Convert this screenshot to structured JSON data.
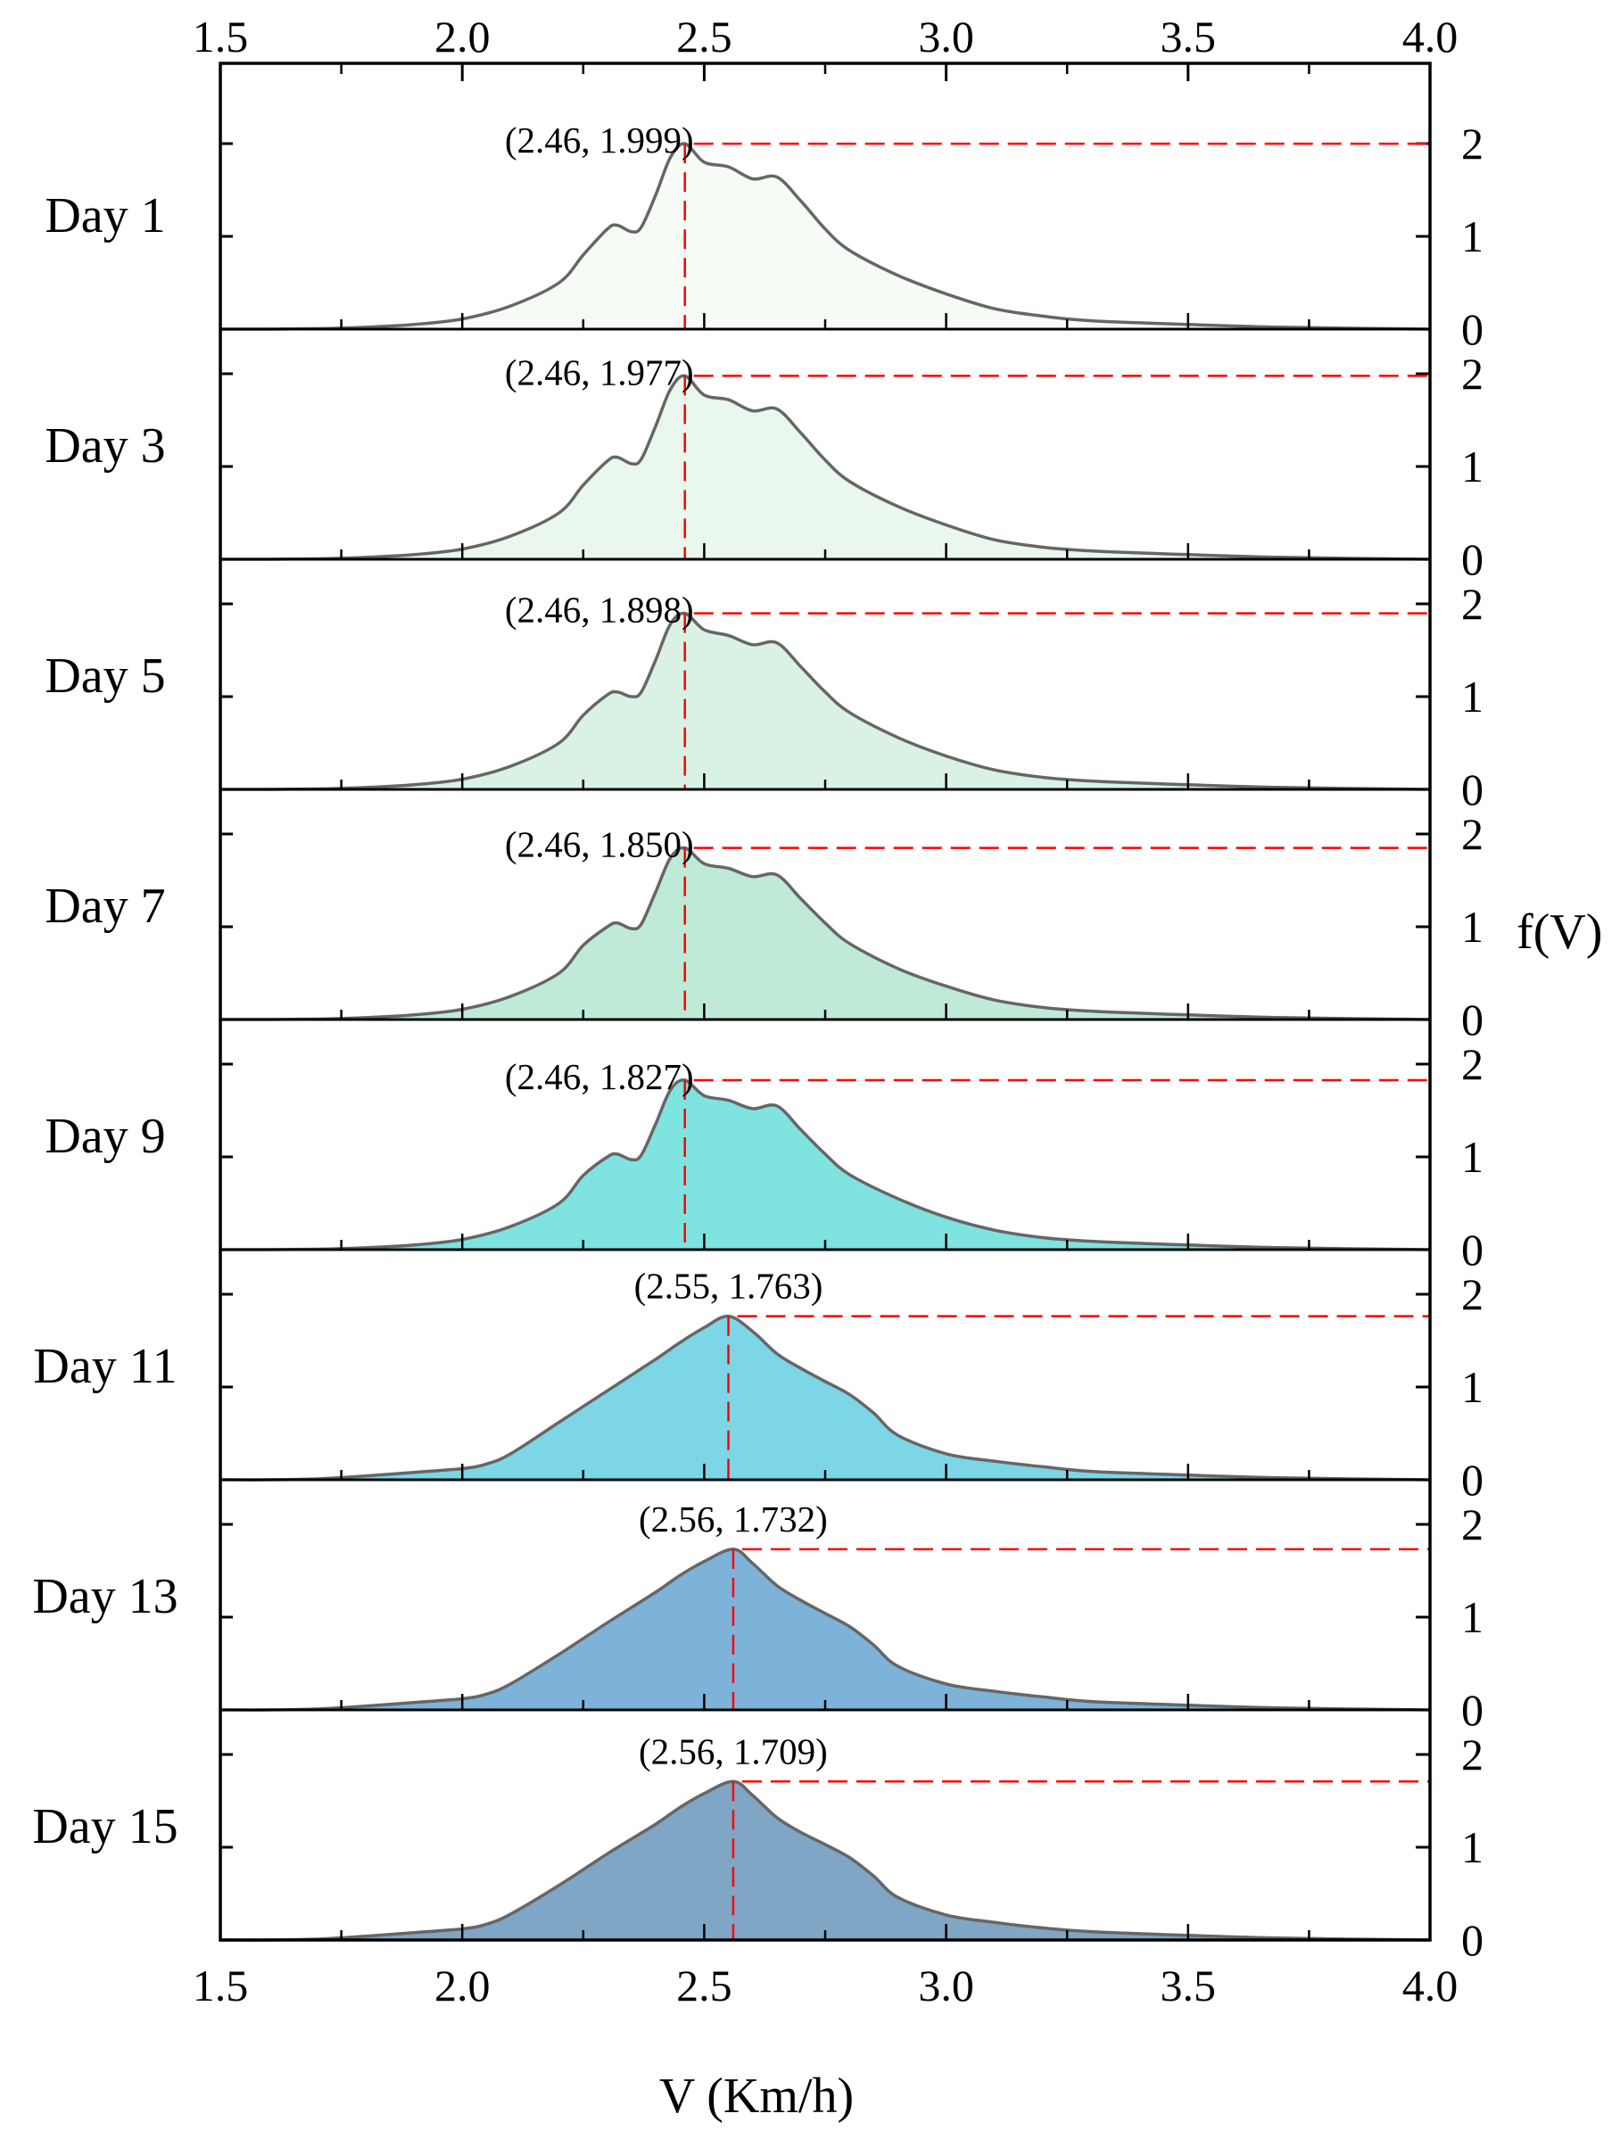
{
  "chart_data": {
    "type": "area",
    "xlabel": "V (Km/h)",
    "ylabel": "f(V)",
    "xlim": [
      1.5,
      4.0
    ],
    "xticks": [
      "1.5",
      "2.0",
      "2.5",
      "3.0",
      "3.5",
      "4.0"
    ],
    "ylim": [
      0,
      2.0
    ],
    "yticks": [
      "0",
      "1",
      "2"
    ],
    "panels": [
      {
        "label": "Day 1",
        "peak_label": "(2.46, 1.999)",
        "peak": [
          2.46,
          1.999
        ],
        "color": "#f6fbf6",
        "x": [
          1.5,
          1.6,
          1.7,
          1.8,
          1.9,
          2.0,
          2.1,
          2.2,
          2.25,
          2.3,
          2.32,
          2.35,
          2.37,
          2.4,
          2.43,
          2.46,
          2.5,
          2.55,
          2.6,
          2.65,
          2.7,
          2.75,
          2.8,
          2.9,
          3.0,
          3.1,
          3.2,
          3.3,
          3.5,
          3.7,
          4.0
        ],
        "y": [
          0,
          0,
          0.005,
          0.02,
          0.05,
          0.11,
          0.25,
          0.5,
          0.8,
          1.08,
          1.12,
          1.05,
          1.1,
          1.45,
          1.85,
          1.999,
          1.8,
          1.75,
          1.62,
          1.64,
          1.38,
          1.08,
          0.85,
          0.58,
          0.38,
          0.22,
          0.14,
          0.09,
          0.05,
          0.02,
          0
        ]
      },
      {
        "label": "Day 3",
        "peak_label": "(2.46, 1.977)",
        "peak": [
          2.46,
          1.977
        ],
        "color": "#eaf7ec",
        "x": [
          1.5,
          1.6,
          1.7,
          1.8,
          1.9,
          2.0,
          2.1,
          2.2,
          2.25,
          2.3,
          2.32,
          2.35,
          2.37,
          2.4,
          2.43,
          2.46,
          2.5,
          2.55,
          2.6,
          2.65,
          2.7,
          2.75,
          2.8,
          2.9,
          3.0,
          3.1,
          3.2,
          3.3,
          3.5,
          3.7,
          4.0
        ],
        "y": [
          0,
          0,
          0.005,
          0.02,
          0.05,
          0.11,
          0.25,
          0.5,
          0.8,
          1.06,
          1.1,
          1.03,
          1.08,
          1.44,
          1.83,
          1.977,
          1.77,
          1.72,
          1.6,
          1.62,
          1.36,
          1.07,
          0.84,
          0.57,
          0.37,
          0.21,
          0.13,
          0.09,
          0.05,
          0.02,
          0
        ]
      },
      {
        "label": "Day 5",
        "peak_label": "(2.46, 1.898)",
        "peak": [
          2.46,
          1.898
        ],
        "color": "#d9f2e3",
        "x": [
          1.5,
          1.6,
          1.7,
          1.8,
          1.9,
          2.0,
          2.1,
          2.2,
          2.25,
          2.3,
          2.32,
          2.35,
          2.37,
          2.4,
          2.43,
          2.46,
          2.5,
          2.55,
          2.6,
          2.65,
          2.7,
          2.75,
          2.8,
          2.9,
          3.0,
          3.1,
          3.2,
          3.3,
          3.5,
          3.7,
          4.0
        ],
        "y": [
          0,
          0,
          0.005,
          0.02,
          0.05,
          0.11,
          0.25,
          0.5,
          0.8,
          1.02,
          1.05,
          1.0,
          1.05,
          1.4,
          1.78,
          1.898,
          1.72,
          1.66,
          1.56,
          1.58,
          1.32,
          1.05,
          0.83,
          0.56,
          0.36,
          0.21,
          0.13,
          0.09,
          0.05,
          0.02,
          0
        ]
      },
      {
        "label": "Day 7",
        "peak_label": "(2.46, 1.850)",
        "peak": [
          2.46,
          1.85
        ],
        "color": "#bfead7",
        "x": [
          1.5,
          1.6,
          1.7,
          1.8,
          1.9,
          2.0,
          2.1,
          2.2,
          2.25,
          2.3,
          2.32,
          2.35,
          2.37,
          2.4,
          2.43,
          2.46,
          2.5,
          2.55,
          2.6,
          2.65,
          2.7,
          2.75,
          2.8,
          2.9,
          3.0,
          3.1,
          3.2,
          3.3,
          3.5,
          3.7,
          4.0
        ],
        "y": [
          0,
          0,
          0.005,
          0.02,
          0.05,
          0.11,
          0.25,
          0.5,
          0.8,
          1.0,
          1.04,
          0.98,
          1.03,
          1.38,
          1.74,
          1.85,
          1.68,
          1.63,
          1.54,
          1.56,
          1.3,
          1.04,
          0.82,
          0.55,
          0.36,
          0.21,
          0.13,
          0.09,
          0.05,
          0.02,
          0
        ]
      },
      {
        "label": "Day 9",
        "peak_label": "(2.46, 1.827)",
        "peak": [
          2.46,
          1.827
        ],
        "color": "#7fe3df",
        "x": [
          1.5,
          1.6,
          1.7,
          1.8,
          1.9,
          2.0,
          2.1,
          2.2,
          2.25,
          2.3,
          2.32,
          2.35,
          2.37,
          2.4,
          2.43,
          2.46,
          2.5,
          2.55,
          2.6,
          2.65,
          2.7,
          2.75,
          2.8,
          2.9,
          3.0,
          3.1,
          3.2,
          3.3,
          3.5,
          3.7,
          4.0
        ],
        "y": [
          0,
          0,
          0.005,
          0.02,
          0.05,
          0.11,
          0.25,
          0.5,
          0.8,
          1.0,
          1.03,
          0.97,
          1.02,
          1.36,
          1.72,
          1.827,
          1.66,
          1.61,
          1.52,
          1.55,
          1.29,
          1.03,
          0.81,
          0.55,
          0.35,
          0.21,
          0.13,
          0.09,
          0.05,
          0.02,
          0
        ]
      },
      {
        "label": "Day 11",
        "peak_label": "(2.55, 1.763)",
        "peak": [
          2.55,
          1.763
        ],
        "color": "#7dd6e6",
        "x": [
          1.5,
          1.6,
          1.7,
          1.8,
          1.9,
          2.0,
          2.05,
          2.1,
          2.2,
          2.3,
          2.4,
          2.45,
          2.5,
          2.55,
          2.6,
          2.65,
          2.7,
          2.75,
          2.8,
          2.85,
          2.9,
          3.0,
          3.1,
          3.2,
          3.3,
          3.5,
          3.7,
          4.0
        ],
        "y": [
          0,
          0,
          0.01,
          0.04,
          0.08,
          0.12,
          0.17,
          0.28,
          0.62,
          0.96,
          1.3,
          1.48,
          1.64,
          1.763,
          1.6,
          1.36,
          1.2,
          1.06,
          0.92,
          0.72,
          0.48,
          0.28,
          0.2,
          0.14,
          0.09,
          0.05,
          0.02,
          0
        ]
      },
      {
        "label": "Day 13",
        "peak_label": "(2.56, 1.732)",
        "peak": [
          2.56,
          1.732
        ],
        "color": "#7db3d8",
        "x": [
          1.5,
          1.6,
          1.7,
          1.8,
          1.9,
          2.0,
          2.05,
          2.1,
          2.2,
          2.3,
          2.4,
          2.45,
          2.5,
          2.56,
          2.6,
          2.65,
          2.7,
          2.75,
          2.8,
          2.85,
          2.9,
          3.0,
          3.1,
          3.2,
          3.3,
          3.5,
          3.7,
          4.0
        ],
        "y": [
          0,
          0,
          0.01,
          0.04,
          0.08,
          0.12,
          0.17,
          0.28,
          0.6,
          0.94,
          1.27,
          1.45,
          1.6,
          1.732,
          1.58,
          1.34,
          1.18,
          1.04,
          0.9,
          0.7,
          0.47,
          0.28,
          0.2,
          0.14,
          0.09,
          0.05,
          0.02,
          0
        ]
      },
      {
        "label": "Day 15",
        "peak_label": "(2.56, 1.709)",
        "peak": [
          2.56,
          1.709
        ],
        "color": "#7fa6c4",
        "x": [
          1.5,
          1.6,
          1.7,
          1.8,
          1.9,
          2.0,
          2.05,
          2.1,
          2.2,
          2.3,
          2.4,
          2.45,
          2.5,
          2.56,
          2.6,
          2.65,
          2.7,
          2.75,
          2.8,
          2.85,
          2.9,
          3.0,
          3.1,
          3.2,
          3.3,
          3.5,
          3.7,
          4.0
        ],
        "y": [
          0,
          0,
          0.01,
          0.04,
          0.08,
          0.12,
          0.17,
          0.28,
          0.59,
          0.93,
          1.25,
          1.43,
          1.58,
          1.709,
          1.56,
          1.32,
          1.16,
          1.03,
          0.89,
          0.69,
          0.46,
          0.27,
          0.19,
          0.13,
          0.09,
          0.05,
          0.02,
          0
        ]
      }
    ],
    "line_color": "#666666",
    "guide_color": "#ff0000"
  }
}
